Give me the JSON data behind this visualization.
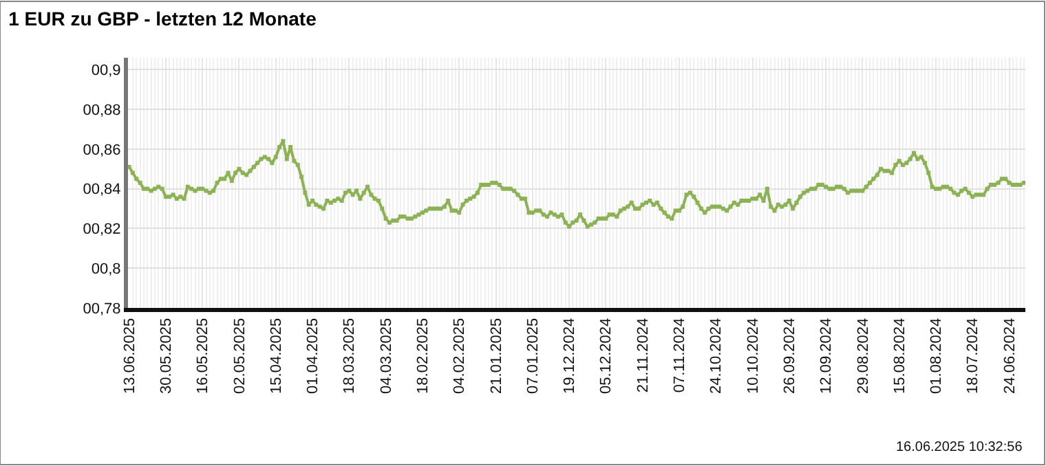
{
  "chart_data": {
    "type": "line",
    "title": "1 EUR zu GBP - letzten 12 Monate",
    "annotations": [
      "16.06.2025 10:32:56"
    ],
    "categories": [
      "13.06.2025",
      null,
      null,
      null,
      null,
      null,
      null,
      null,
      null,
      null,
      "30.05.2025",
      null,
      null,
      null,
      null,
      null,
      null,
      null,
      null,
      null,
      "16.05.2025",
      null,
      null,
      null,
      null,
      null,
      null,
      null,
      null,
      null,
      "02.05.2025",
      null,
      null,
      null,
      null,
      null,
      null,
      null,
      null,
      null,
      "15.04.2025",
      null,
      null,
      null,
      null,
      null,
      null,
      null,
      null,
      null,
      "01.04.2025",
      null,
      null,
      null,
      null,
      null,
      null,
      null,
      null,
      null,
      "18.03.2025",
      null,
      null,
      null,
      null,
      null,
      null,
      null,
      null,
      null,
      "04.03.2025",
      null,
      null,
      null,
      null,
      null,
      null,
      null,
      null,
      null,
      "18.02.2025",
      null,
      null,
      null,
      null,
      null,
      null,
      null,
      null,
      null,
      "04.02.2025",
      null,
      null,
      null,
      null,
      null,
      null,
      null,
      null,
      null,
      "21.01.2025",
      null,
      null,
      null,
      null,
      null,
      null,
      null,
      null,
      null,
      "07.01.2025",
      null,
      null,
      null,
      null,
      null,
      null,
      null,
      null,
      null,
      "19.12.2024",
      null,
      null,
      null,
      null,
      null,
      null,
      null,
      null,
      null,
      "05.12.2024",
      null,
      null,
      null,
      null,
      null,
      null,
      null,
      null,
      null,
      "21.11.2024",
      null,
      null,
      null,
      null,
      null,
      null,
      null,
      null,
      null,
      "07.11.2024",
      null,
      null,
      null,
      null,
      null,
      null,
      null,
      null,
      null,
      "24.10.2024",
      null,
      null,
      null,
      null,
      null,
      null,
      null,
      null,
      null,
      "10.10.2024",
      null,
      null,
      null,
      null,
      null,
      null,
      null,
      null,
      null,
      "26.09.2024",
      null,
      null,
      null,
      null,
      null,
      null,
      null,
      null,
      null,
      "12.09.2024",
      null,
      null,
      null,
      null,
      null,
      null,
      null,
      null,
      null,
      "29.08.2024",
      null,
      null,
      null,
      null,
      null,
      null,
      null,
      null,
      null,
      "15.08.2024",
      null,
      null,
      null,
      null,
      null,
      null,
      null,
      null,
      null,
      "01.08.2024",
      null,
      null,
      null,
      null,
      null,
      null,
      null,
      null,
      null,
      "18.07.2024",
      null,
      null,
      null,
      null,
      null,
      null,
      null,
      null,
      null,
      "24.06.2024",
      null,
      null,
      null,
      null
    ],
    "series": [
      {
        "color": "#8db255",
        "values": [
          0.851,
          0.848,
          0.845,
          0.843,
          0.84,
          0.84,
          0.839,
          0.84,
          0.841,
          0.84,
          0.836,
          0.836,
          0.837,
          0.835,
          0.836,
          0.835,
          0.841,
          0.84,
          0.839,
          0.84,
          0.84,
          0.839,
          0.838,
          0.839,
          0.843,
          0.845,
          0.845,
          0.848,
          0.844,
          0.848,
          0.85,
          0.848,
          0.847,
          0.849,
          0.851,
          0.853,
          0.855,
          0.856,
          0.855,
          0.853,
          0.856,
          0.861,
          0.864,
          0.855,
          0.861,
          0.854,
          0.852,
          0.846,
          0.838,
          0.832,
          0.834,
          0.832,
          0.831,
          0.83,
          0.834,
          0.833,
          0.834,
          0.835,
          0.834,
          0.838,
          0.839,
          0.837,
          0.839,
          0.835,
          0.838,
          0.841,
          0.837,
          0.835,
          0.834,
          0.83,
          0.825,
          0.823,
          0.824,
          0.824,
          0.826,
          0.826,
          0.825,
          0.825,
          0.826,
          0.827,
          0.828,
          0.829,
          0.83,
          0.83,
          0.83,
          0.83,
          0.831,
          0.834,
          0.829,
          0.829,
          0.828,
          0.832,
          0.834,
          0.835,
          0.836,
          0.838,
          0.842,
          0.842,
          0.842,
          0.843,
          0.843,
          0.842,
          0.84,
          0.84,
          0.84,
          0.839,
          0.837,
          0.835,
          0.835,
          0.828,
          0.828,
          0.829,
          0.829,
          0.827,
          0.826,
          0.828,
          0.827,
          0.826,
          0.827,
          0.823,
          0.821,
          0.823,
          0.824,
          0.827,
          0.824,
          0.821,
          0.822,
          0.823,
          0.825,
          0.825,
          0.825,
          0.827,
          0.827,
          0.826,
          0.829,
          0.83,
          0.831,
          0.833,
          0.83,
          0.83,
          0.832,
          0.833,
          0.834,
          0.832,
          0.833,
          0.83,
          0.828,
          0.826,
          0.825,
          0.829,
          0.829,
          0.831,
          0.837,
          0.838,
          0.836,
          0.833,
          0.83,
          0.828,
          0.83,
          0.831,
          0.831,
          0.831,
          0.83,
          0.829,
          0.831,
          0.833,
          0.832,
          0.834,
          0.834,
          0.834,
          0.835,
          0.835,
          0.837,
          0.834,
          0.84,
          0.831,
          0.829,
          0.832,
          0.831,
          0.832,
          0.834,
          0.83,
          0.833,
          0.836,
          0.838,
          0.839,
          0.84,
          0.84,
          0.842,
          0.842,
          0.841,
          0.84,
          0.84,
          0.841,
          0.841,
          0.84,
          0.838,
          0.839,
          0.839,
          0.839,
          0.839,
          0.841,
          0.843,
          0.845,
          0.847,
          0.85,
          0.849,
          0.849,
          0.848,
          0.852,
          0.854,
          0.852,
          0.853,
          0.855,
          0.858,
          0.855,
          0.856,
          0.853,
          0.848,
          0.841,
          0.84,
          0.84,
          0.841,
          0.841,
          0.84,
          0.838,
          0.837,
          0.839,
          0.84,
          0.838,
          0.836,
          0.837,
          0.837,
          0.837,
          0.84,
          0.842,
          0.842,
          0.843,
          0.845,
          0.845,
          0.843,
          0.842,
          0.842,
          0.842,
          0.843
        ]
      }
    ],
    "ylim": [
      0.78,
      0.906
    ],
    "yticks": [
      {
        "value": 0.78,
        "label": "00,78"
      },
      {
        "value": 0.8,
        "label": "00,8"
      },
      {
        "value": 0.82,
        "label": "00,82"
      },
      {
        "value": 0.84,
        "label": "00,84"
      },
      {
        "value": 0.86,
        "label": "00,86"
      },
      {
        "value": 0.88,
        "label": "00,88"
      },
      {
        "value": 0.9,
        "label": "00,9"
      }
    ],
    "grid": true,
    "marker": "square",
    "line_style": "solid"
  }
}
